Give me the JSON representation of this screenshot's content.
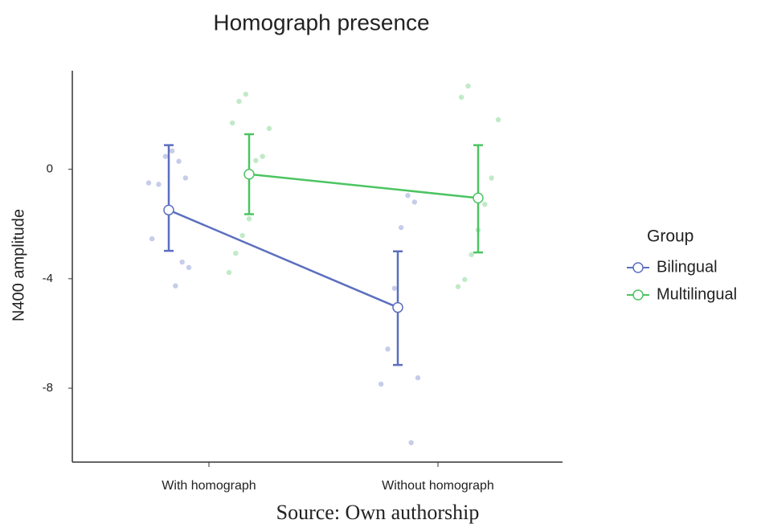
{
  "chart_data": {
    "type": "dot-errorbar",
    "title": "Homograph presence",
    "y_label": "N400 amplitude",
    "caption": "Source: Own authorship",
    "legend_title": "Group",
    "categories": [
      "With homograph",
      "Without homograph"
    ],
    "ylim": [
      -10.7,
      3.6
    ],
    "yticks": [
      0,
      -4,
      -8
    ],
    "series": [
      {
        "name": "Bilingual",
        "color": "#5b6fbf",
        "values": [
          -1.49,
          -5.05
        ],
        "lower": [
          -2.98,
          -7.15
        ],
        "upper": [
          0.88,
          -3.0
        ],
        "points": [
          [
            -0.5,
            -0.32,
            0.29,
            0.67,
            0.47,
            -0.55,
            -2.54,
            -3.59,
            -3.39,
            -4.26
          ],
          [
            -1.2,
            -0.96,
            -2.13,
            -4.35,
            -6.57,
            -7.85,
            -7.62,
            -9.99
          ]
        ]
      },
      {
        "name": "Multilingual",
        "color": "#4cc462",
        "values": [
          -0.18,
          -1.05
        ],
        "lower": [
          -1.64,
          -3.04
        ],
        "upper": [
          1.28,
          0.88
        ],
        "points": [
          [
            2.74,
            2.48,
            1.69,
            1.49,
            0.47,
            0.32,
            -1.81,
            -2.42,
            -3.07,
            -3.77
          ],
          [
            3.04,
            2.63,
            1.81,
            -0.32,
            -1.28,
            -2.22,
            -3.12,
            -4.03,
            -4.29
          ]
        ]
      }
    ]
  }
}
